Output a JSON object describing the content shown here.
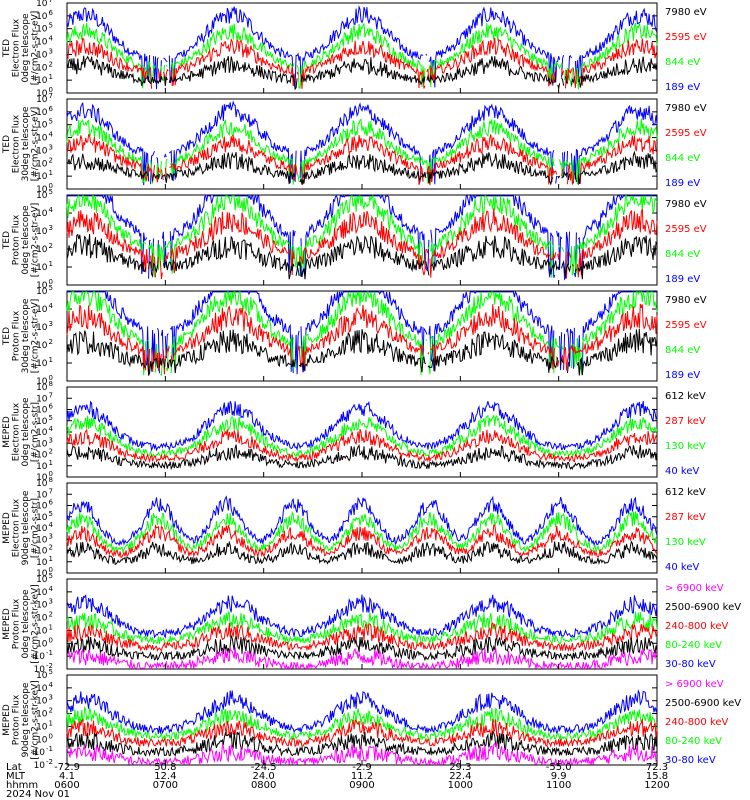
{
  "figure": {
    "date_label": "2024 Nov 01",
    "x_axis": {
      "row_labels": [
        "Lat",
        "MLT",
        "hhmm"
      ],
      "ticks": [
        {
          "lat": "-72.9",
          "mlt": "4.1",
          "hhmm": "0600"
        },
        {
          "lat": "50.8",
          "mlt": "12.4",
          "hhmm": "0700"
        },
        {
          "lat": "-24.5",
          "mlt": "24.0",
          "hhmm": "0800"
        },
        {
          "lat": "-2.9",
          "mlt": "11.2",
          "hhmm": "0900"
        },
        {
          "lat": "29.3",
          "mlt": "22.4",
          "hhmm": "1000"
        },
        {
          "lat": "-55.0",
          "mlt": "9.9",
          "hhmm": "1100"
        },
        {
          "lat": "72.3",
          "mlt": "15.8",
          "hhmm": "1200"
        }
      ]
    },
    "colors": {
      "blue": "#0000ff",
      "red": "#ff0000",
      "green": "#00ff00",
      "black": "#000000",
      "magenta": "#ff00ff"
    }
  },
  "chart_data": [
    {
      "type": "line",
      "ylabel": [
        "TED",
        "Electron Flux",
        "0deg telescope",
        "[#/cm2-s-str-eV]"
      ],
      "y_scale": "log",
      "ylim_exp": [
        0,
        7
      ],
      "x_range_hhmm": [
        "0600",
        "1200"
      ],
      "series": [
        {
          "name": "7980 eV",
          "color": "#000000"
        },
        {
          "name": "2595 eV",
          "color": "#ff0000"
        },
        {
          "name": "844 eV",
          "color": "#00ff00"
        },
        {
          "name": "189 eV",
          "color": "#0000ff"
        }
      ]
    },
    {
      "type": "line",
      "ylabel": [
        "TED",
        "Electron Flux",
        "30deg telescope",
        "[#/cm2-s-str-eV]"
      ],
      "y_scale": "log",
      "ylim_exp": [
        0,
        7
      ],
      "x_range_hhmm": [
        "0600",
        "1200"
      ],
      "series": [
        {
          "name": "7980 eV",
          "color": "#000000"
        },
        {
          "name": "2595 eV",
          "color": "#ff0000"
        },
        {
          "name": "844 eV",
          "color": "#00ff00"
        },
        {
          "name": "189 eV",
          "color": "#0000ff"
        }
      ]
    },
    {
      "type": "line",
      "ylabel": [
        "TED",
        "Proton Flux",
        "0deg telescope",
        "[#/cm2-s-str-eV]"
      ],
      "y_scale": "log",
      "ylim_exp": [
        0,
        5
      ],
      "x_range_hhmm": [
        "0600",
        "1200"
      ],
      "series": [
        {
          "name": "7980 eV",
          "color": "#000000"
        },
        {
          "name": "2595 eV",
          "color": "#ff0000"
        },
        {
          "name": "844 eV",
          "color": "#00ff00"
        },
        {
          "name": "189 eV",
          "color": "#0000ff"
        }
      ]
    },
    {
      "type": "line",
      "ylabel": [
        "TED",
        "Proton Flux",
        "30deg telescope",
        "[#/cm2-s-str-eV]"
      ],
      "y_scale": "log",
      "ylim_exp": [
        0,
        5
      ],
      "x_range_hhmm": [
        "0600",
        "1200"
      ],
      "series": [
        {
          "name": "7980 eV",
          "color": "#000000"
        },
        {
          "name": "2595 eV",
          "color": "#ff0000"
        },
        {
          "name": "844 eV",
          "color": "#00ff00"
        },
        {
          "name": "189 eV",
          "color": "#0000ff"
        }
      ]
    },
    {
      "type": "line",
      "ylabel": [
        "MEPED",
        "Electron Flux",
        "0deg telescope",
        "[#/cm2-s-str]"
      ],
      "y_scale": "log",
      "ylim_exp": [
        0,
        8
      ],
      "x_range_hhmm": [
        "0600",
        "1200"
      ],
      "series": [
        {
          "name": "612 keV",
          "color": "#000000"
        },
        {
          "name": "287 keV",
          "color": "#ff0000"
        },
        {
          "name": "130 keV",
          "color": "#00ff00"
        },
        {
          "name": "40 keV",
          "color": "#0000ff"
        }
      ]
    },
    {
      "type": "line",
      "ylabel": [
        "MEPED",
        "Electron Flux",
        "90deg telescope",
        "[#/cm2-s-str]"
      ],
      "y_scale": "log",
      "ylim_exp": [
        0,
        8
      ],
      "x_range_hhmm": [
        "0600",
        "1200"
      ],
      "series": [
        {
          "name": "612 keV",
          "color": "#000000"
        },
        {
          "name": "287 keV",
          "color": "#ff0000"
        },
        {
          "name": "130 keV",
          "color": "#00ff00"
        },
        {
          "name": "40 keV",
          "color": "#0000ff"
        }
      ]
    },
    {
      "type": "line",
      "ylabel": [
        "MEPED",
        "Proton Flux",
        "0deg telescope",
        "[#/cm2-s-str-keV]"
      ],
      "y_scale": "log",
      "ylim_exp": [
        -2,
        5
      ],
      "x_range_hhmm": [
        "0600",
        "1200"
      ],
      "series": [
        {
          "name": "> 6900 keV",
          "color": "#ff00ff"
        },
        {
          "name": "2500-6900 keV",
          "color": "#000000"
        },
        {
          "name": "240-800 keV",
          "color": "#ff0000"
        },
        {
          "name": "80-240 keV",
          "color": "#00ff00"
        },
        {
          "name": "30-80 keV",
          "color": "#0000ff"
        }
      ]
    },
    {
      "type": "line",
      "ylabel": [
        "MEPED",
        "Proton Flux",
        "90deg telescope",
        "[#/cm2-s-str-keV]"
      ],
      "y_scale": "log",
      "ylim_exp": [
        -2,
        5
      ],
      "x_range_hhmm": [
        "0600",
        "1200"
      ],
      "series": [
        {
          "name": "> 6900 keV",
          "color": "#ff00ff"
        },
        {
          "name": "2500-6900 keV",
          "color": "#000000"
        },
        {
          "name": "240-800 keV",
          "color": "#ff0000"
        },
        {
          "name": "80-240 keV",
          "color": "#00ff00"
        },
        {
          "name": "30-80 keV",
          "color": "#0000ff"
        }
      ]
    }
  ]
}
